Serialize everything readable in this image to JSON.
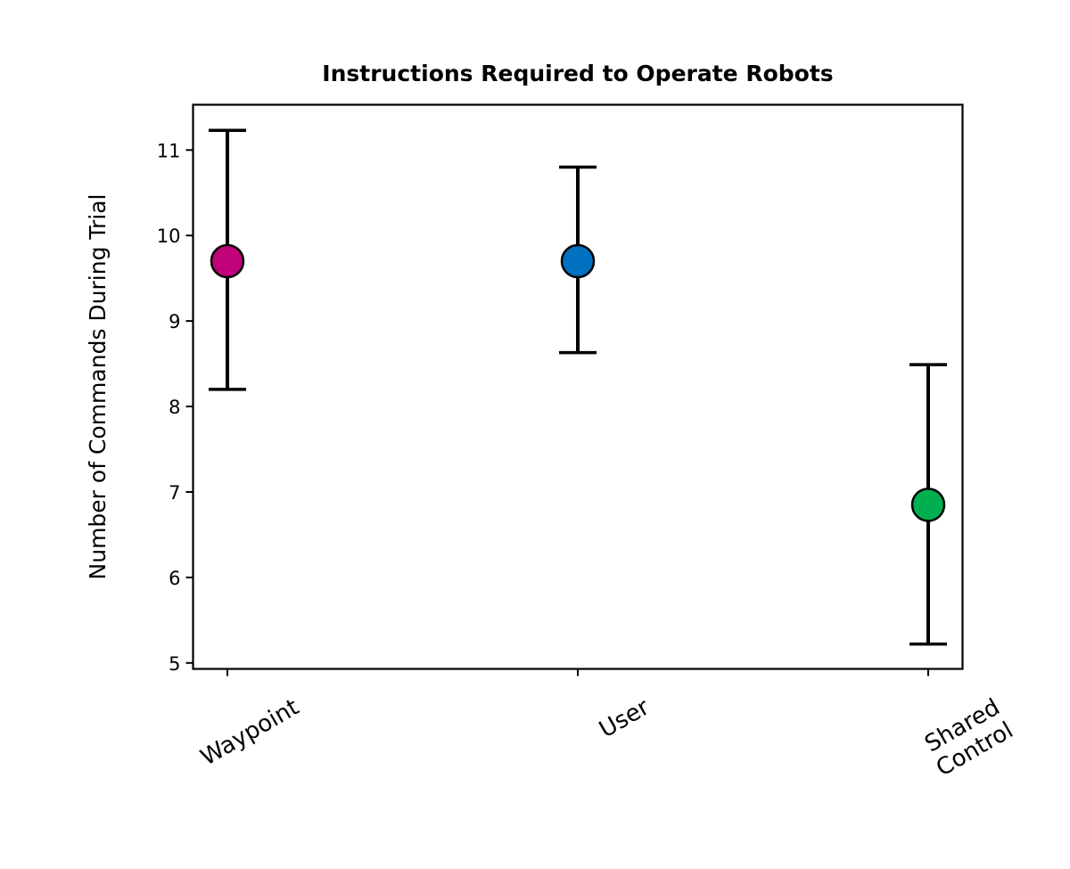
{
  "chart_data": {
    "type": "scatter",
    "title": "Instructions Required to Operate Robots",
    "xlabel": "",
    "ylabel": "Number of Commands During Trial",
    "ylim": [
      4.93,
      11.53
    ],
    "yticks": [
      5,
      6,
      7,
      8,
      9,
      10,
      11
    ],
    "grid": false,
    "legend": "none",
    "categories": [
      {
        "lines": [
          "Waypoint"
        ]
      },
      {
        "lines": [
          "User"
        ]
      },
      {
        "lines": [
          "Shared",
          "Control"
        ]
      }
    ],
    "points": [
      {
        "category": "Waypoint",
        "mean": 9.7,
        "lower": 8.2,
        "upper": 11.23,
        "color": "#c0037a"
      },
      {
        "category": "User",
        "mean": 9.7,
        "lower": 8.63,
        "upper": 10.8,
        "color": "#0070c0"
      },
      {
        "category": "Shared Control",
        "mean": 6.85,
        "lower": 5.22,
        "upper": 8.49,
        "color": "#00b050"
      }
    ]
  }
}
